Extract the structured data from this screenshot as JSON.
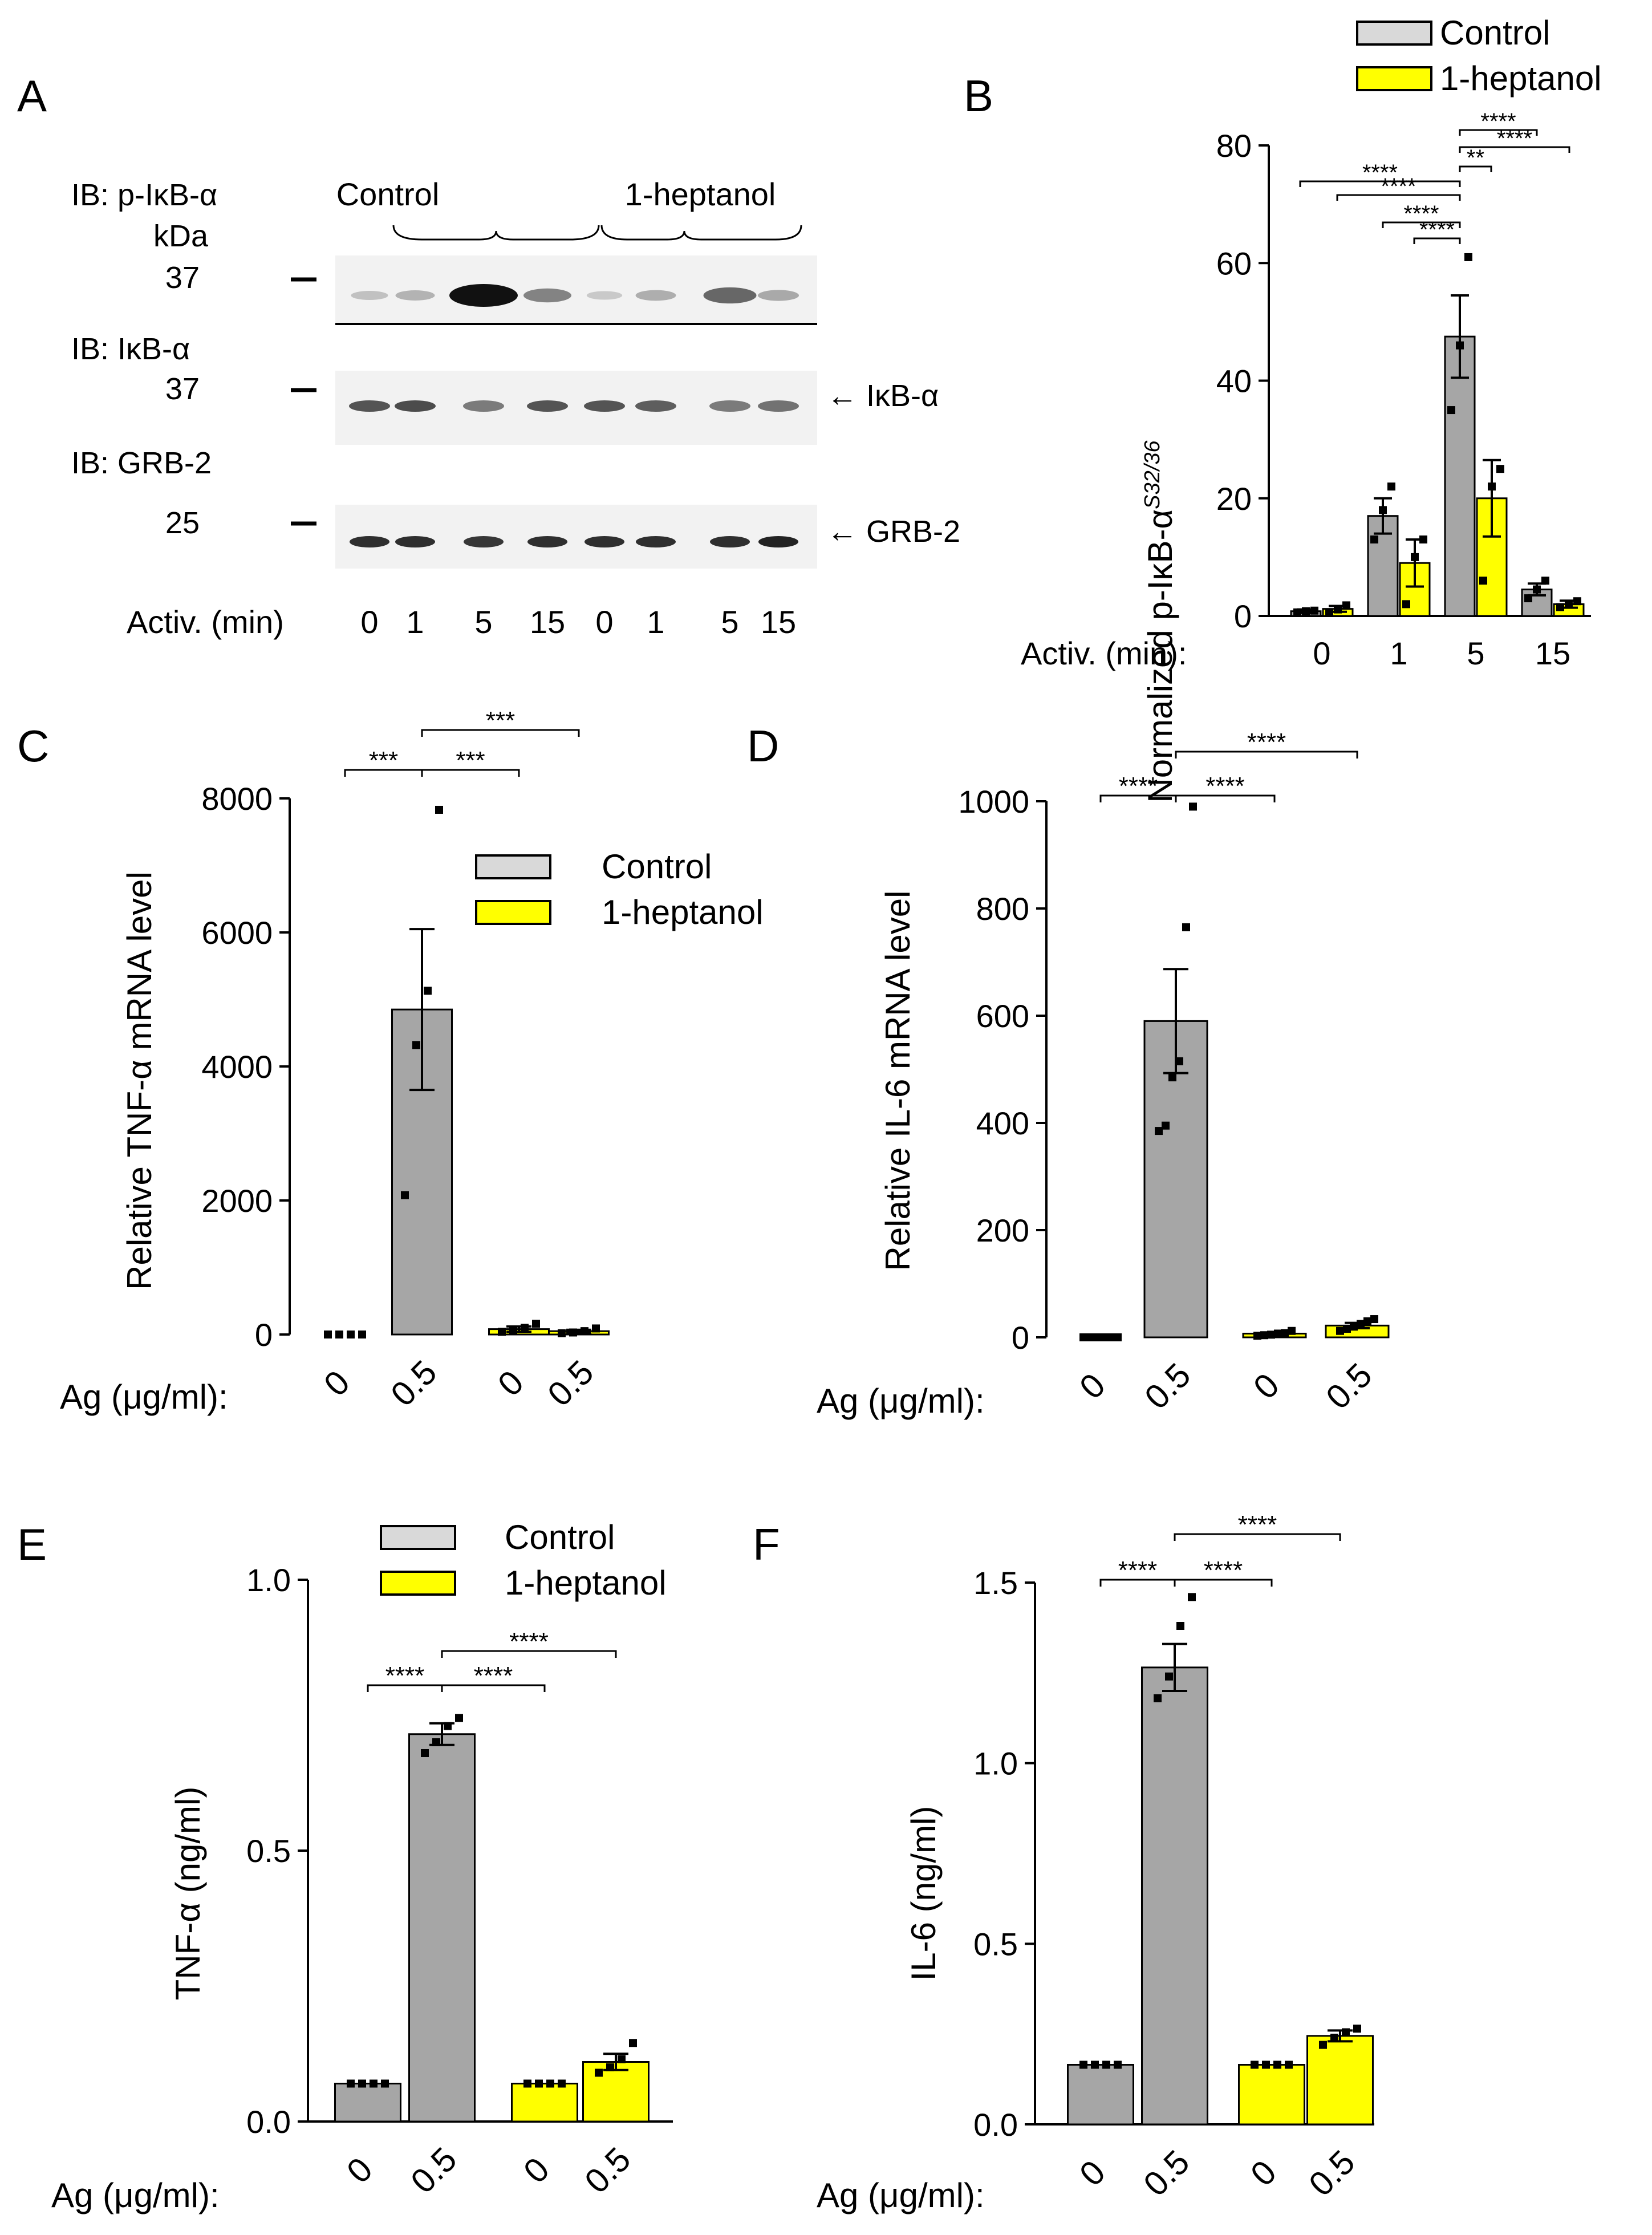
{
  "colors": {
    "control": "#a6a6a6",
    "heptanol": "#ffff00",
    "band": "#111111",
    "blot_bg": "#f2f2f2",
    "axis": "#000000"
  },
  "chart_data": [
    {
      "id": "A",
      "type": "western_blot",
      "panel_label": "A",
      "blots": [
        {
          "label": "IB: p-IκB-α",
          "unit": "kDa",
          "marker": "37",
          "band_intensity": [
            0.08,
            0.15,
            1.0,
            0.4,
            0.04,
            0.18,
            0.55,
            0.2
          ]
        },
        {
          "label": "IB: IκB-α",
          "marker": "37",
          "arrow": "← IκB-α",
          "band_intensity": [
            0.65,
            0.7,
            0.45,
            0.65,
            0.65,
            0.6,
            0.45,
            0.5
          ]
        },
        {
          "label": "IB: GRB-2",
          "marker": "25",
          "arrow": "← GRB-2",
          "band_intensity": [
            0.85,
            0.85,
            0.8,
            0.85,
            0.85,
            0.85,
            0.85,
            0.9
          ]
        }
      ],
      "group_labels": [
        "Control",
        "1-heptanol"
      ],
      "xlabel": "Activ. (min)",
      "lanes": [
        "0",
        "1",
        "5",
        "15",
        "0",
        "1",
        "5",
        "15"
      ]
    },
    {
      "id": "B",
      "type": "bar",
      "panel_label": "B",
      "ylabel": "Normalized p-IκB-α",
      "ylabel_sup": "S32/36",
      "xlabel": "Activ. (min):",
      "ylim": [
        0,
        80
      ],
      "yticks": [
        "0",
        "20",
        "40",
        "60",
        "80"
      ],
      "categories": [
        "0",
        "1",
        "5",
        "15"
      ],
      "legend": [
        "Control",
        "1-heptanol"
      ],
      "series": [
        {
          "name": "Control",
          "values": [
            0.8,
            17,
            47.5,
            4.5
          ],
          "errors": [
            0.3,
            3,
            7,
            1
          ],
          "points": [
            [
              0.6,
              0.8,
              0.9
            ],
            [
              13,
              18,
              22
            ],
            [
              35,
              46,
              61
            ],
            [
              3,
              4.5,
              6
            ]
          ]
        },
        {
          "name": "1-heptanol",
          "values": [
            1.2,
            9,
            20,
            2
          ],
          "errors": [
            0.5,
            4,
            6.5,
            0.6
          ],
          "points": [
            [
              0.6,
              1.1,
              1.8
            ],
            [
              2,
              10,
              13
            ],
            [
              6,
              22,
              25
            ],
            [
              1.5,
              2,
              2.5
            ]
          ]
        }
      ],
      "significance": [
        {
          "from": [
            0,
            0
          ],
          "to": [
            2,
            0
          ],
          "label": "****"
        },
        {
          "from": [
            1,
            0
          ],
          "to": [
            2,
            0
          ],
          "label": "****"
        },
        {
          "from": [
            1,
            1
          ],
          "to": [
            2,
            0
          ],
          "label": "****"
        },
        {
          "from": [
            0,
            1
          ],
          "to": [
            2,
            0
          ],
          "label": "****"
        },
        {
          "from": [
            2,
            0
          ],
          "to": [
            2,
            1
          ],
          "label": "**"
        },
        {
          "from": [
            2,
            0
          ],
          "to": [
            3,
            0
          ],
          "label": "****"
        },
        {
          "from": [
            2,
            0
          ],
          "to": [
            3,
            1
          ],
          "label": "****"
        }
      ]
    },
    {
      "id": "C",
      "type": "bar",
      "panel_label": "C",
      "ylabel": "Relative TNF-α mRNA level",
      "xlabel": "Ag (μg/ml):",
      "ylim": [
        0,
        8000
      ],
      "yticks": [
        "0",
        "2000",
        "4000",
        "6000",
        "8000"
      ],
      "categories": [
        "0",
        "0.5",
        "0",
        "0.5"
      ],
      "colors": [
        "#a6a6a6",
        "#a6a6a6",
        "#ffff00",
        "#ffff00"
      ],
      "legend": [
        "Control",
        "1-heptanol"
      ],
      "values": [
        0,
        4850,
        80,
        50
      ],
      "errors": [
        0,
        1200,
        40,
        20
      ],
      "points": [
        [
          0,
          0,
          0,
          0
        ],
        [
          2080,
          4320,
          5130,
          7830
        ],
        [
          40,
          60,
          100,
          160
        ],
        [
          20,
          30,
          50,
          90
        ]
      ],
      "significance": [
        {
          "a": 0,
          "b": 1,
          "label": "***"
        },
        {
          "a": 1,
          "b": 2,
          "label": "***"
        },
        {
          "a": 1,
          "b": 3,
          "label": "***"
        }
      ]
    },
    {
      "id": "D",
      "type": "bar",
      "panel_label": "D",
      "ylabel": "Relative IL-6 mRNA level",
      "xlabel": "Ag (μg/ml):",
      "ylim": [
        0,
        1000
      ],
      "yticks": [
        "0",
        "200",
        "400",
        "600",
        "800",
        "1000"
      ],
      "categories": [
        "0",
        "0.5",
        "0",
        "0.5"
      ],
      "colors": [
        "#a6a6a6",
        "#a6a6a6",
        "#ffff00",
        "#ffff00"
      ],
      "values": [
        0,
        590,
        7,
        22
      ],
      "errors": [
        0,
        97,
        2,
        5
      ],
      "points": [
        [
          0,
          0,
          0,
          0,
          0,
          0
        ],
        [
          385,
          395,
          485,
          515,
          765,
          990
        ],
        [
          3,
          4,
          5,
          7,
          8,
          12
        ],
        [
          12,
          16,
          20,
          25,
          30,
          34
        ]
      ],
      "significance": [
        {
          "a": 0,
          "b": 1,
          "label": "****"
        },
        {
          "a": 1,
          "b": 2,
          "label": "****"
        },
        {
          "a": 1,
          "b": 3,
          "label": "****"
        }
      ]
    },
    {
      "id": "E",
      "type": "bar",
      "panel_label": "E",
      "ylabel": "TNF-α (ng/ml)",
      "xlabel": "Ag (μg/ml):",
      "ylim": [
        0,
        1.0
      ],
      "yticks": [
        "0.0",
        "0.5",
        "1.0"
      ],
      "categories": [
        "0",
        "0.5",
        "0",
        "0.5"
      ],
      "colors": [
        "#a6a6a6",
        "#a6a6a6",
        "#ffff00",
        "#ffff00"
      ],
      "legend": [
        "Control",
        "1-heptanol"
      ],
      "values": [
        0.07,
        0.715,
        0.07,
        0.11
      ],
      "errors": [
        0,
        0.02,
        0,
        0.015
      ],
      "points": [
        [
          0.07,
          0.07,
          0.07,
          0.07
        ],
        [
          0.68,
          0.7,
          0.73,
          0.745
        ],
        [
          0.07,
          0.07,
          0.07,
          0.07
        ],
        [
          0.09,
          0.1,
          0.115,
          0.145
        ]
      ],
      "significance": [
        {
          "a": 0,
          "b": 1,
          "label": "****"
        },
        {
          "a": 1,
          "b": 2,
          "label": "****"
        },
        {
          "a": 1,
          "b": 3,
          "label": "****"
        }
      ]
    },
    {
      "id": "F",
      "type": "bar",
      "panel_label": "F",
      "ylabel": "IL-6 (ng/ml)",
      "xlabel": "Ag (μg/ml):",
      "ylim": [
        0,
        1.5
      ],
      "yticks": [
        "0.0",
        "0.5",
        "1.0",
        "1.5"
      ],
      "categories": [
        "0",
        "0.5",
        "0",
        "0.5"
      ],
      "colors": [
        "#a6a6a6",
        "#a6a6a6",
        "#ffff00",
        "#ffff00"
      ],
      "values": [
        0.165,
        1.265,
        0.165,
        0.245
      ],
      "errors": [
        0,
        0.065,
        0,
        0.015
      ],
      "points": [
        [
          0.165,
          0.165,
          0.165,
          0.165
        ],
        [
          1.18,
          1.24,
          1.38,
          1.46
        ],
        [
          0.165,
          0.165,
          0.165,
          0.165
        ],
        [
          0.22,
          0.24,
          0.255,
          0.265
        ]
      ],
      "significance": [
        {
          "a": 0,
          "b": 1,
          "label": "****"
        },
        {
          "a": 1,
          "b": 2,
          "label": "****"
        },
        {
          "a": 1,
          "b": 3,
          "label": "****"
        }
      ]
    }
  ]
}
